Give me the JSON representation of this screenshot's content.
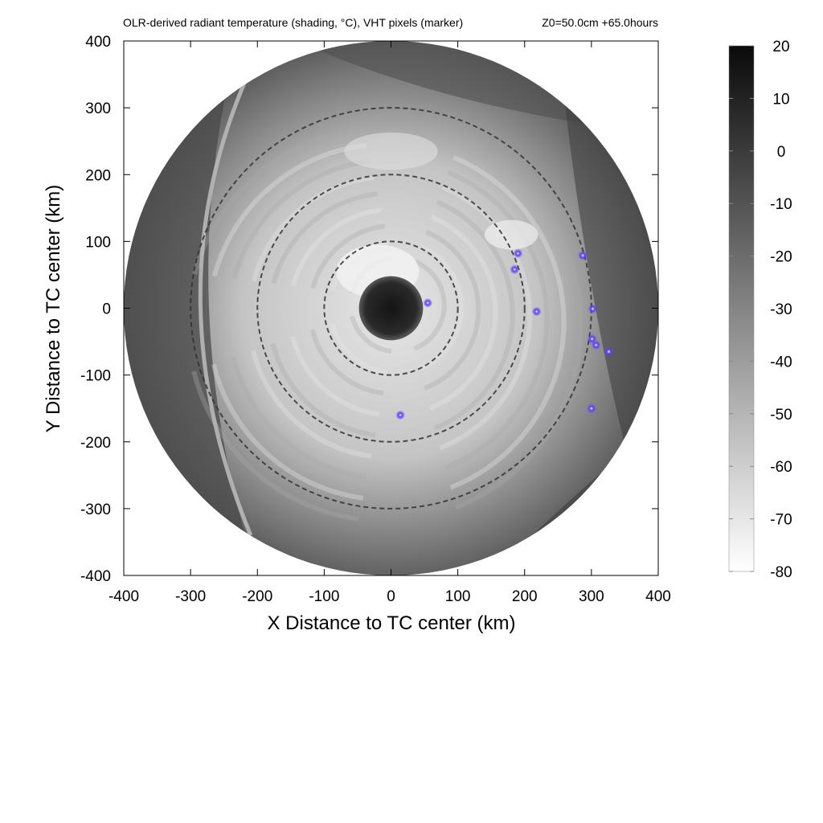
{
  "chart_data": {
    "type": "heatmap",
    "title": "OLR-derived radiant temperature (shading, °C), VHT pixels (marker)",
    "subtitle": "Z0=50.0cm  +65.0hours",
    "xlabel": "X Distance to TC center (km)",
    "ylabel": "Y Distance to TC center (km)",
    "xlim": [
      -400,
      400
    ],
    "ylim": [
      -400,
      400
    ],
    "x_ticks": [
      "-400",
      "-300",
      "-200",
      "-100",
      "0",
      "100",
      "200",
      "300",
      "400"
    ],
    "y_ticks": [
      "400",
      "300",
      "200",
      "100",
      "0",
      "-100",
      "-200",
      "-300",
      "-400"
    ],
    "colorbar": {
      "min": -80,
      "max": 20,
      "ticks": [
        "20",
        "10",
        "0",
        "-10",
        "-20",
        "-30",
        "-40",
        "-50",
        "-60",
        "-70",
        "-80"
      ],
      "colors": [
        "#ffffff",
        "#0a0a0a"
      ]
    },
    "domain_radius_km": 400,
    "range_rings_km": [
      100,
      200,
      300
    ],
    "eye": {
      "x": 0,
      "y": 0,
      "radius_km": 48
    },
    "vht_markers": [
      {
        "x": 55,
        "y": 8
      },
      {
        "x": 190,
        "y": 82
      },
      {
        "x": 185,
        "y": 58
      },
      {
        "x": 287,
        "y": 79
      },
      {
        "x": 218,
        "y": -5
      },
      {
        "x": 302,
        "y": -1
      },
      {
        "x": 301,
        "y": -46
      },
      {
        "x": 307,
        "y": -55
      },
      {
        "x": 326,
        "y": -65
      },
      {
        "x": 300,
        "y": -150
      },
      {
        "x": 14,
        "y": -160
      }
    ],
    "marker_color": "#4a2bff",
    "grid": false
  }
}
